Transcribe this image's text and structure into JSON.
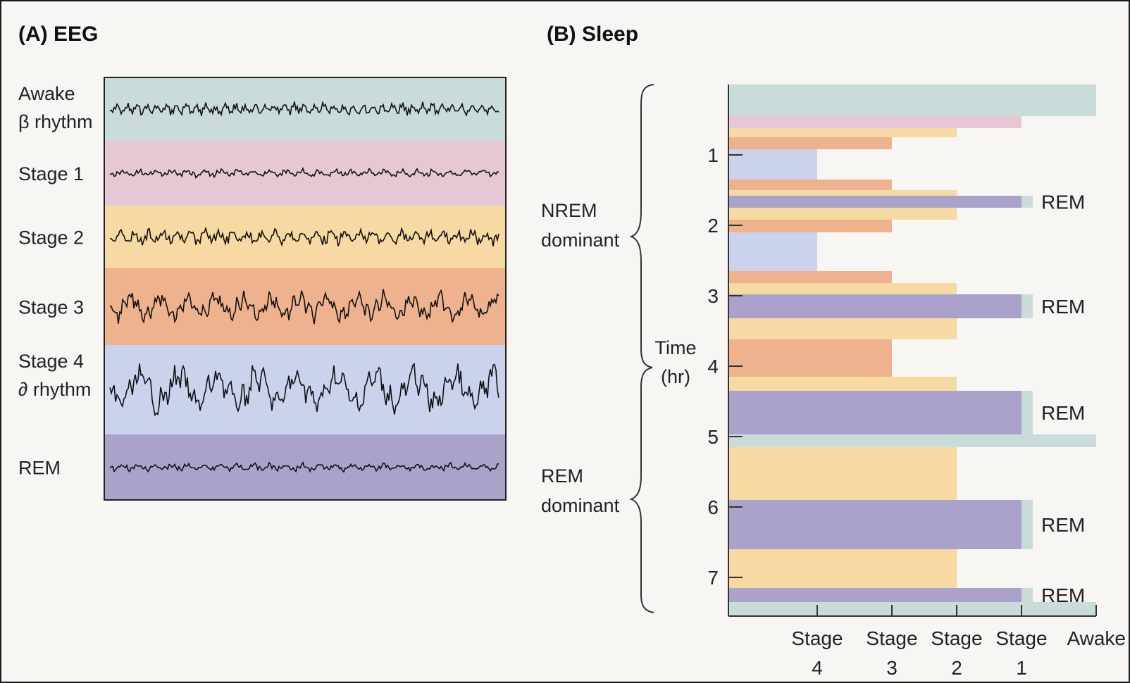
{
  "colors": {
    "awake": "#c9dcd9",
    "stage1": "#e5c8d3",
    "stage2": "#f6d9a3",
    "stage3": "#eeb28e",
    "stage4": "#cbd2ec",
    "rem": "#aaa2cb",
    "trace": "#111111"
  },
  "panel_a": {
    "title": "(A)  EEG",
    "rows": [
      {
        "key": "awake",
        "label1": "Awake",
        "label2": "β rhythm",
        "amp": 8,
        "freq": 1.0
      },
      {
        "key": "stage1",
        "label1": "Stage 1",
        "label2": "",
        "amp": 5,
        "freq": 0.6
      },
      {
        "key": "stage2",
        "label1": "Stage 2",
        "label2": "",
        "amp": 10,
        "freq": 0.7
      },
      {
        "key": "stage3",
        "label1": "Stage 3",
        "label2": "",
        "amp": 18,
        "freq": 0.35
      },
      {
        "key": "stage4",
        "label1": "Stage 4",
        "label2": "∂ rhythm",
        "amp": 30,
        "freq": 0.25
      },
      {
        "key": "rem",
        "label1": "REM",
        "label2": "",
        "amp": 5,
        "freq": 0.6
      }
    ]
  },
  "panel_b": {
    "title": "(B)  Sleep",
    "axis_title_1": "Time",
    "axis_title_2": "(hr)",
    "nrem_label_1": "NREM",
    "nrem_label_2": "dominant",
    "rem_dom_label_1": "REM",
    "rem_dom_label_2": "dominant",
    "rem_marker": "REM",
    "y_ticks": [
      "1",
      "2",
      "3",
      "4",
      "5",
      "6",
      "7"
    ],
    "x_ticks": [
      {
        "line1": "Stage",
        "line2": "4"
      },
      {
        "line1": "Stage",
        "line2": "3"
      },
      {
        "line1": "Stage",
        "line2": "2"
      },
      {
        "line1": "Stage",
        "line2": "1"
      },
      {
        "line1": "Awake",
        "line2": ""
      }
    ],
    "hypnogram": [
      {
        "start": 0.0,
        "end": 0.45,
        "stage": "awake"
      },
      {
        "start": 0.45,
        "end": 0.62,
        "stage": "stage1"
      },
      {
        "start": 0.62,
        "end": 0.75,
        "stage": "stage2"
      },
      {
        "start": 0.75,
        "end": 0.92,
        "stage": "stage3"
      },
      {
        "start": 0.92,
        "end": 1.35,
        "stage": "stage4"
      },
      {
        "start": 1.35,
        "end": 1.5,
        "stage": "stage3"
      },
      {
        "start": 1.5,
        "end": 1.58,
        "stage": "stage2"
      },
      {
        "start": 1.58,
        "end": 1.75,
        "stage": "rem",
        "rem_label": true
      },
      {
        "start": 1.75,
        "end": 1.92,
        "stage": "stage2"
      },
      {
        "start": 1.92,
        "end": 2.1,
        "stage": "stage3"
      },
      {
        "start": 2.1,
        "end": 2.65,
        "stage": "stage4"
      },
      {
        "start": 2.65,
        "end": 2.82,
        "stage": "stage3"
      },
      {
        "start": 2.82,
        "end": 2.98,
        "stage": "stage2"
      },
      {
        "start": 2.98,
        "end": 3.32,
        "stage": "rem",
        "rem_label": true
      },
      {
        "start": 3.32,
        "end": 3.62,
        "stage": "stage2"
      },
      {
        "start": 3.62,
        "end": 4.15,
        "stage": "stage3"
      },
      {
        "start": 4.15,
        "end": 4.35,
        "stage": "stage2"
      },
      {
        "start": 4.35,
        "end": 4.97,
        "stage": "rem",
        "rem_label": true
      },
      {
        "start": 4.97,
        "end": 5.15,
        "stage": "awake"
      },
      {
        "start": 5.15,
        "end": 5.9,
        "stage": "stage2"
      },
      {
        "start": 5.9,
        "end": 6.6,
        "stage": "rem",
        "rem_label": true
      },
      {
        "start": 6.6,
        "end": 7.15,
        "stage": "stage2"
      },
      {
        "start": 7.15,
        "end": 7.35,
        "stage": "rem",
        "rem_label": true
      },
      {
        "start": 7.35,
        "end": 7.55,
        "stage": "awake"
      }
    ]
  }
}
